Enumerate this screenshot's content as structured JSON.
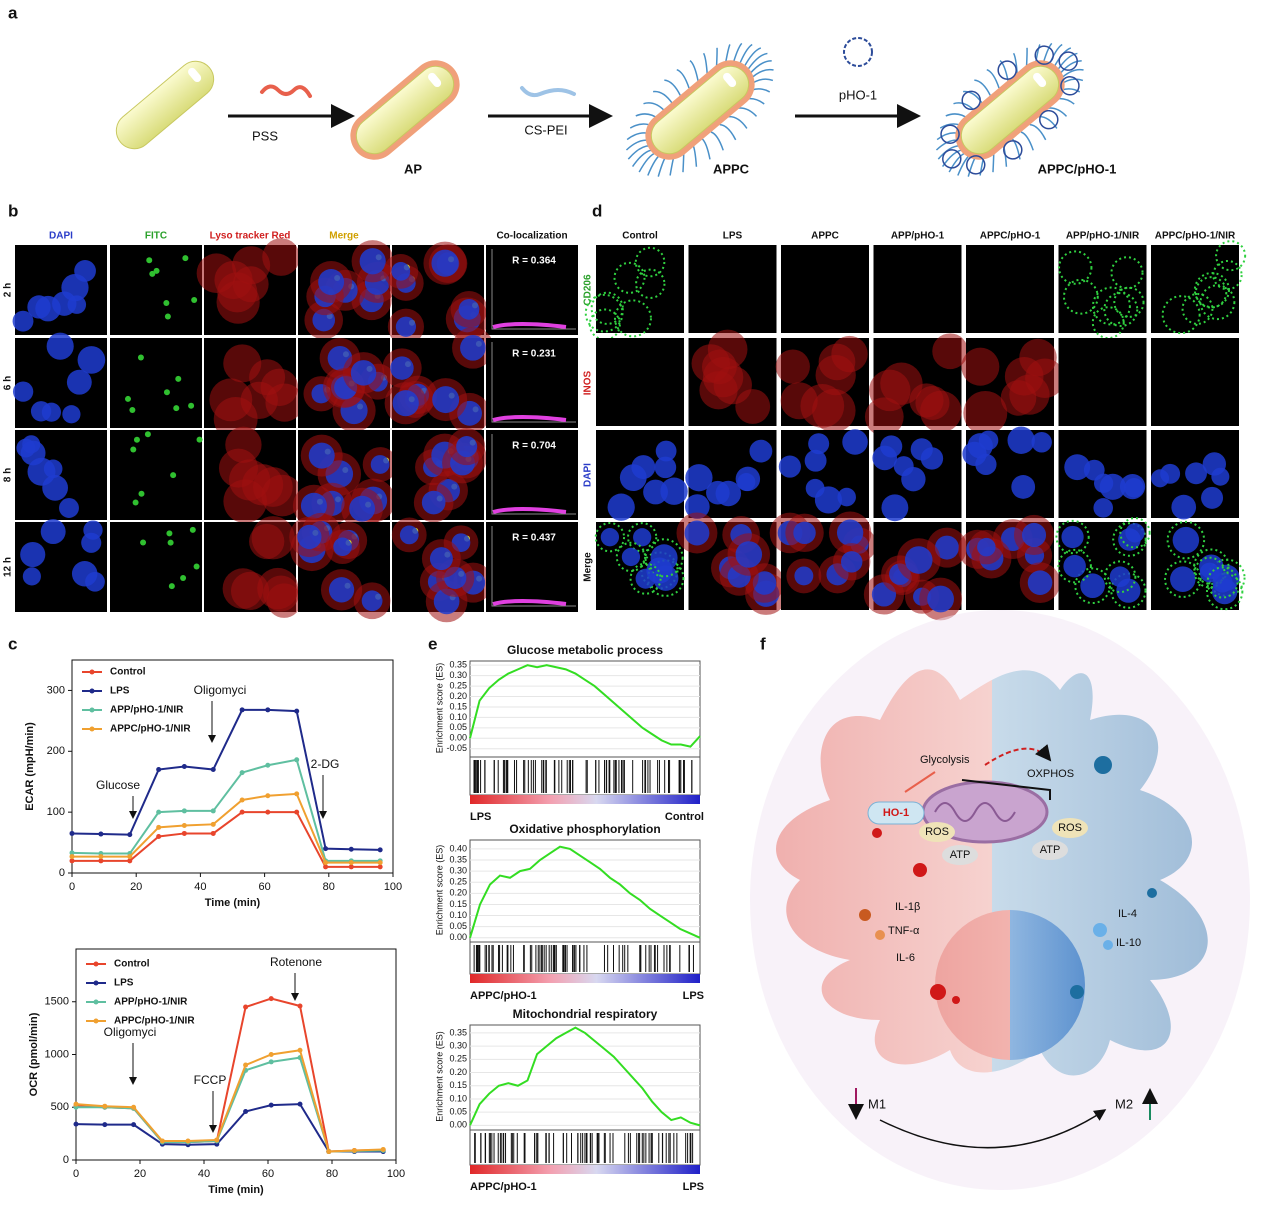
{
  "panel_labels": [
    "a",
    "b",
    "c",
    "d",
    "e",
    "f"
  ],
  "panel_a": {
    "steps": [
      "PSS",
      "CS-PEI",
      "pHO-1"
    ],
    "products": [
      "AP",
      "APPC",
      "APPC/pHO-1"
    ]
  },
  "panel_b": {
    "columns": [
      "DAPI",
      "FITC",
      "Lyso tracker Red",
      "Merge",
      "Co-localization"
    ],
    "rows": [
      "2 h",
      "6 h",
      "8 h",
      "12 h"
    ],
    "r_values": [
      "R = 0.364",
      "R = 0.231",
      "R = 0.704",
      "R = 0.437"
    ]
  },
  "panel_d": {
    "columns": [
      "Control",
      "LPS",
      "APPC",
      "APP/pHO-1",
      "APPC/pHO-1",
      "APP/pHO-1/NIR",
      "APPC/pHO-1/NIR"
    ],
    "rows": [
      "CD206",
      "INOS",
      "DAPI",
      "Merge"
    ]
  },
  "panel_f": {
    "labels": [
      "Glycolysis",
      "OXPHOS",
      "HO-1",
      "ROS",
      "ATP",
      "ROS",
      "ATP",
      "IL-1β",
      "TNF-α",
      "IL-6",
      "IL-4",
      "IL-10"
    ],
    "phenotypes": [
      "M1",
      "M2"
    ]
  },
  "chart_data": [
    {
      "type": "line",
      "ylabel": "ECAR (mpH/min)",
      "xlabel": "Time (min)",
      "annotations": [
        "Glucose",
        "Oligomyci",
        "2-DG"
      ],
      "x": [
        0,
        9,
        18,
        27,
        35,
        44,
        53,
        61,
        70,
        79,
        87,
        96
      ],
      "xlim": [
        0,
        100
      ],
      "xticks": [
        0,
        20,
        40,
        60,
        80,
        100
      ],
      "ylim": [
        0,
        350
      ],
      "yticks": [
        0,
        100,
        200,
        300
      ],
      "series": [
        {
          "name": "Control",
          "color": "#e8452c",
          "values": [
            20,
            20,
            20,
            60,
            65,
            65,
            100,
            100,
            100,
            10,
            10,
            10
          ]
        },
        {
          "name": "LPS",
          "color": "#1f2a8a",
          "values": [
            65,
            64,
            63,
            170,
            175,
            170,
            268,
            268,
            266,
            40,
            39,
            38
          ]
        },
        {
          "name": "APP/pHO-1/NIR",
          "color": "#5fbfa0",
          "values": [
            33,
            32,
            32,
            100,
            102,
            102,
            165,
            177,
            186,
            20,
            20,
            20
          ]
        },
        {
          "name": "APPC/pHO-1/NIR",
          "color": "#f0a030",
          "values": [
            27,
            27,
            27,
            75,
            78,
            80,
            120,
            127,
            130,
            17,
            17,
            17
          ]
        }
      ]
    },
    {
      "type": "line",
      "ylabel": "OCR (pmol/min)",
      "xlabel": "Time (min)",
      "annotations": [
        "Oligomyci",
        "FCCP",
        "Rotenone"
      ],
      "x": [
        0,
        9,
        18,
        27,
        35,
        44,
        53,
        61,
        70,
        79,
        87,
        96
      ],
      "xlim": [
        0,
        100
      ],
      "xticks": [
        0,
        20,
        40,
        60,
        80,
        100
      ],
      "ylim": [
        0,
        2000
      ],
      "yticks": [
        0,
        500,
        1000,
        1500
      ],
      "series": [
        {
          "name": "Control",
          "color": "#e8452c",
          "values": [
            510,
            500,
            490,
            170,
            170,
            180,
            1450,
            1530,
            1460,
            80,
            90,
            95
          ]
        },
        {
          "name": "LPS",
          "color": "#1f2a8a",
          "values": [
            340,
            335,
            335,
            150,
            145,
            150,
            460,
            520,
            530,
            80,
            80,
            80
          ]
        },
        {
          "name": "APP/pHO-1/NIR",
          "color": "#5fbfa0",
          "values": [
            500,
            500,
            490,
            170,
            170,
            180,
            850,
            930,
            970,
            80,
            85,
            90
          ]
        },
        {
          "name": "APPC/pHO-1/NIR",
          "color": "#f0a030",
          "values": [
            530,
            510,
            500,
            180,
            180,
            190,
            900,
            1000,
            1040,
            80,
            90,
            100
          ]
        }
      ]
    },
    {
      "type": "gsea",
      "title": "Glucose metabolic process",
      "ylabel": "Enrichment score (ES)",
      "phenotypes": [
        "LPS",
        "Control"
      ],
      "color": "#33dd22",
      "values": [
        0.0,
        0.18,
        0.24,
        0.28,
        0.31,
        0.33,
        0.35,
        0.34,
        0.35,
        0.34,
        0.33,
        0.31,
        0.28,
        0.25,
        0.21,
        0.17,
        0.13,
        0.09,
        0.05,
        0.02,
        -0.01,
        -0.03,
        -0.03,
        -0.04,
        0.01
      ],
      "ylim": [
        -0.08,
        0.37
      ],
      "yticks": [
        0.35,
        {
          "value": 0.3,
          "label": "0.30"
        },
        0.25,
        {
          "value": 0.2,
          "label": "0.20"
        },
        0.15,
        {
          "value": 0.1,
          "label": "0.10"
        },
        0.05,
        {
          "value": 0,
          "label": "0.00"
        },
        -0.05
      ]
    },
    {
      "type": "gsea",
      "title": "Oxidative phosphorylation",
      "ylabel": "Enrichment score (ES)",
      "phenotypes": [
        "APPC/pHO-1",
        "LPS"
      ],
      "color": "#33dd22",
      "values": [
        0.0,
        0.15,
        0.24,
        0.28,
        0.27,
        0.3,
        0.31,
        0.35,
        0.38,
        0.41,
        0.4,
        0.37,
        0.34,
        0.31,
        0.27,
        0.24,
        0.2,
        0.17,
        0.13,
        0.1,
        0.07,
        0.04,
        0.02,
        0.0
      ],
      "ylim": [
        -0.01,
        0.44
      ],
      "yticks": [
        {
          "value": 0.4,
          "label": "0.40"
        },
        0.35,
        {
          "value": 0.3,
          "label": "0.30"
        },
        0.25,
        {
          "value": 0.2,
          "label": "0.20"
        },
        0.15,
        {
          "value": 0.1,
          "label": "0.10"
        },
        0.05,
        {
          "value": 0,
          "label": "0.00"
        }
      ]
    },
    {
      "type": "gsea",
      "title": "Mitochondrial respiratory",
      "ylabel": "Enrichment score (ES)",
      "phenotypes": [
        "APPC/pHO-1",
        "LPS"
      ],
      "color": "#33dd22",
      "values": [
        0.0,
        0.08,
        0.12,
        0.15,
        0.16,
        0.15,
        0.17,
        0.27,
        0.3,
        0.33,
        0.35,
        0.37,
        0.35,
        0.32,
        0.29,
        0.26,
        0.22,
        0.18,
        0.14,
        0.09,
        0.05,
        0.02,
        0.03,
        0.01,
        0.0
      ],
      "ylim": [
        -0.01,
        0.38
      ],
      "yticks": [
        0.35,
        {
          "value": 0.3,
          "label": "0.30"
        },
        0.25,
        {
          "value": 0.2,
          "label": "0.20"
        },
        0.15,
        {
          "value": 0.1,
          "label": "0.10"
        },
        0.05,
        {
          "value": 0,
          "label": "0.00"
        }
      ]
    }
  ]
}
